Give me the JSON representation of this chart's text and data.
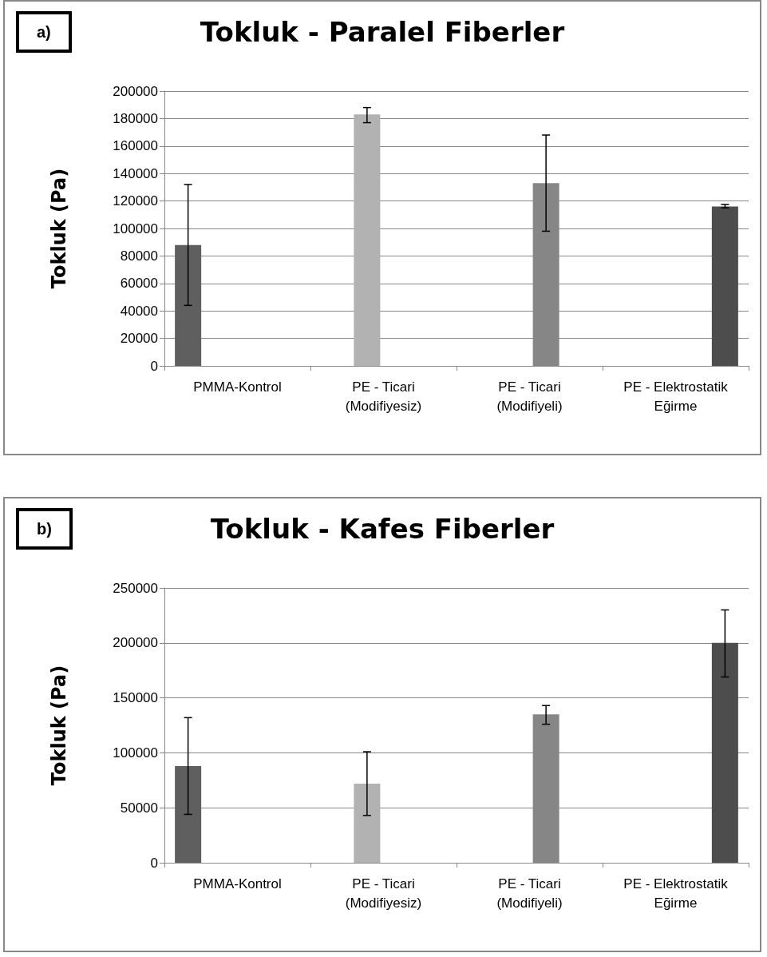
{
  "chart_data": [
    {
      "type": "bar",
      "title": "Tokluk - Paralel Fiberler",
      "ylabel": "Tokluk (Pa)",
      "annotations": [
        "a)"
      ],
      "categories": [
        "PMMA-Kontrol",
        "PE - Ticari\n(Modifiyesiz)",
        "PE - Ticari\n(Modifiyeli)",
        "PE - Elektrostatik\nEğirme"
      ],
      "series": [
        {
          "color": "#5f5f5f",
          "values": [
            88000,
            null,
            null,
            null
          ],
          "errors": [
            [
              44000,
              132000
            ],
            null,
            null,
            null
          ]
        },
        {
          "color": "#b2b2b2",
          "values": [
            null,
            183000,
            null,
            null
          ],
          "errors": [
            null,
            [
              177000,
              188000
            ],
            null,
            null
          ]
        },
        {
          "color": "#868686",
          "values": [
            null,
            null,
            133000,
            null
          ],
          "errors": [
            null,
            null,
            [
              98000,
              168000
            ],
            null
          ]
        },
        {
          "color": "#4d4d4d",
          "values": [
            null,
            null,
            null,
            116000
          ],
          "errors": [
            null,
            null,
            null,
            [
              115000,
              117500
            ]
          ]
        }
      ],
      "ylim": [
        0,
        200000
      ],
      "yticks": [
        0,
        20000,
        40000,
        60000,
        80000,
        100000,
        120000,
        140000,
        160000,
        180000,
        200000
      ],
      "grid": "y"
    },
    {
      "type": "bar",
      "title": "Tokluk - Kafes Fiberler",
      "ylabel": "Tokluk (Pa)",
      "annotations": [
        "b)"
      ],
      "categories": [
        "PMMA-Kontrol",
        "PE - Ticari\n(Modifiyesiz)",
        "PE - Ticari\n(Modifiyeli)",
        "PE - Elektrostatik\nEğirme"
      ],
      "series": [
        {
          "color": "#5f5f5f",
          "values": [
            88000,
            null,
            null,
            null
          ],
          "errors": [
            [
              44000,
              132000
            ],
            null,
            null,
            null
          ]
        },
        {
          "color": "#b2b2b2",
          "values": [
            null,
            72000,
            null,
            null
          ],
          "errors": [
            null,
            [
              43000,
              101000
            ],
            null,
            null
          ]
        },
        {
          "color": "#868686",
          "values": [
            null,
            null,
            135000,
            null
          ],
          "errors": [
            null,
            null,
            [
              126000,
              143000
            ],
            null
          ]
        },
        {
          "color": "#4d4d4d",
          "values": [
            null,
            null,
            null,
            200000
          ],
          "errors": [
            null,
            null,
            null,
            [
              169000,
              230000
            ]
          ]
        }
      ],
      "ylim": [
        0,
        250000
      ],
      "yticks": [
        0,
        50000,
        100000,
        150000,
        200000,
        250000
      ],
      "grid": "y"
    }
  ]
}
